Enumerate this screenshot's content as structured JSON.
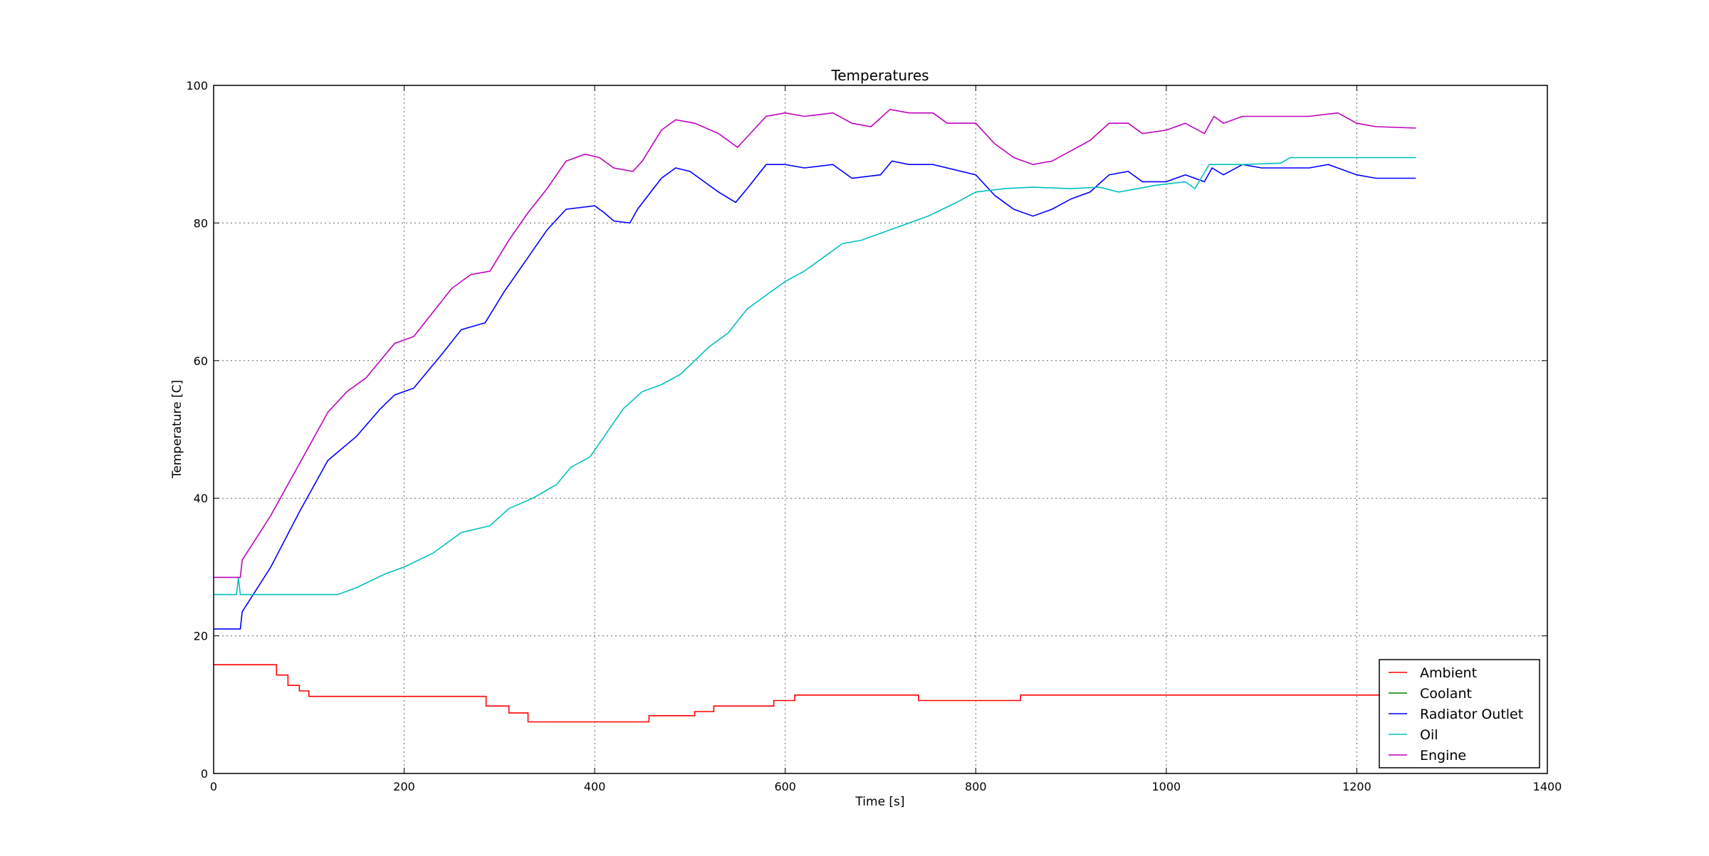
{
  "chart_data": {
    "type": "line",
    "title": "Temperatures",
    "xlabel": "Time [s]",
    "ylabel": "Temperature [C]",
    "xlim": [
      0,
      1400
    ],
    "ylim": [
      0,
      100
    ],
    "xticks": [
      0,
      200,
      400,
      600,
      800,
      1000,
      1200,
      1400
    ],
    "yticks": [
      0,
      20,
      40,
      60,
      80,
      100
    ],
    "grid": true,
    "legend_position": "lower-right",
    "series": [
      {
        "name": "Ambient",
        "color": "#ff0000",
        "step": true,
        "points": [
          [
            0,
            15.8
          ],
          [
            62,
            15.8
          ],
          [
            66,
            14.3
          ],
          [
            78,
            12.8
          ],
          [
            90,
            12.0
          ],
          [
            100,
            11.2
          ],
          [
            280,
            11.2
          ],
          [
            286,
            9.8
          ],
          [
            310,
            8.8
          ],
          [
            330,
            7.5
          ],
          [
            455,
            7.5
          ],
          [
            457,
            8.4
          ],
          [
            505,
            9.0
          ],
          [
            525,
            9.8
          ],
          [
            588,
            10.6
          ],
          [
            610,
            11.4
          ],
          [
            738,
            11.4
          ],
          [
            740,
            10.6
          ],
          [
            845,
            10.6
          ],
          [
            847,
            11.4
          ],
          [
            1262,
            11.4
          ]
        ]
      },
      {
        "name": "Coolant",
        "color": "#008000",
        "step": true,
        "points": []
      },
      {
        "name": "Radiator Outlet",
        "color": "#0000ff",
        "step": false,
        "points": [
          [
            0,
            21.0
          ],
          [
            28,
            21.0
          ],
          [
            30,
            23.5
          ],
          [
            60,
            30
          ],
          [
            90,
            38
          ],
          [
            120,
            45.5
          ],
          [
            150,
            49
          ],
          [
            175,
            53
          ],
          [
            190,
            55
          ],
          [
            210,
            56
          ],
          [
            240,
            61
          ],
          [
            260,
            64.5
          ],
          [
            285,
            65.5
          ],
          [
            305,
            70
          ],
          [
            330,
            75
          ],
          [
            350,
            79
          ],
          [
            370,
            82
          ],
          [
            400,
            82.5
          ],
          [
            410,
            81.5
          ],
          [
            420,
            80.3
          ],
          [
            437,
            80
          ],
          [
            445,
            82
          ],
          [
            470,
            86.5
          ],
          [
            485,
            88
          ],
          [
            500,
            87.5
          ],
          [
            515,
            86
          ],
          [
            530,
            84.5
          ],
          [
            548,
            83
          ],
          [
            560,
            85
          ],
          [
            580,
            88.5
          ],
          [
            600,
            88.5
          ],
          [
            620,
            88
          ],
          [
            650,
            88.5
          ],
          [
            670,
            86.5
          ],
          [
            700,
            87
          ],
          [
            712,
            89
          ],
          [
            730,
            88.5
          ],
          [
            755,
            88.5
          ],
          [
            800,
            87
          ],
          [
            820,
            84
          ],
          [
            840,
            82
          ],
          [
            860,
            81
          ],
          [
            880,
            82
          ],
          [
            900,
            83.5
          ],
          [
            920,
            84.5
          ],
          [
            940,
            87
          ],
          [
            960,
            87.5
          ],
          [
            975,
            86
          ],
          [
            1000,
            86
          ],
          [
            1020,
            87
          ],
          [
            1040,
            86
          ],
          [
            1048,
            88
          ],
          [
            1060,
            87
          ],
          [
            1080,
            88.5
          ],
          [
            1100,
            88
          ],
          [
            1150,
            88
          ],
          [
            1170,
            88.5
          ],
          [
            1200,
            87
          ],
          [
            1220,
            86.5
          ],
          [
            1262,
            86.5
          ]
        ]
      },
      {
        "name": "Oil",
        "color": "#00bfbf",
        "step": false,
        "points": [
          [
            0,
            26.0
          ],
          [
            24,
            26.0
          ],
          [
            26,
            28.5
          ],
          [
            28,
            26.0
          ],
          [
            130,
            26.0
          ],
          [
            150,
            27
          ],
          [
            180,
            29
          ],
          [
            200,
            30
          ],
          [
            230,
            32
          ],
          [
            260,
            35
          ],
          [
            290,
            36
          ],
          [
            310,
            38.5
          ],
          [
            335,
            40
          ],
          [
            360,
            42
          ],
          [
            375,
            44.5
          ],
          [
            395,
            46
          ],
          [
            410,
            49
          ],
          [
            430,
            53
          ],
          [
            450,
            55.5
          ],
          [
            470,
            56.5
          ],
          [
            490,
            58
          ],
          [
            520,
            62
          ],
          [
            540,
            64
          ],
          [
            560,
            67.5
          ],
          [
            580,
            69.5
          ],
          [
            600,
            71.5
          ],
          [
            620,
            73
          ],
          [
            640,
            75
          ],
          [
            660,
            77
          ],
          [
            680,
            77.5
          ],
          [
            700,
            78.5
          ],
          [
            720,
            79.5
          ],
          [
            750,
            81
          ],
          [
            780,
            83
          ],
          [
            800,
            84.5
          ],
          [
            830,
            85
          ],
          [
            860,
            85.2
          ],
          [
            900,
            85
          ],
          [
            930,
            85.2
          ],
          [
            950,
            84.5
          ],
          [
            990,
            85.5
          ],
          [
            1020,
            86
          ],
          [
            1030,
            85
          ],
          [
            1045,
            88.5
          ],
          [
            1060,
            88.5
          ],
          [
            1080,
            88.5
          ],
          [
            1120,
            88.7
          ],
          [
            1130,
            89.5
          ],
          [
            1262,
            89.5
          ]
        ]
      },
      {
        "name": "Engine",
        "color": "#bf00bf",
        "step": false,
        "points": [
          [
            0,
            28.5
          ],
          [
            28,
            28.5
          ],
          [
            30,
            31
          ],
          [
            60,
            37.5
          ],
          [
            80,
            42.5
          ],
          [
            100,
            47.5
          ],
          [
            120,
            52.5
          ],
          [
            140,
            55.5
          ],
          [
            160,
            57.5
          ],
          [
            175,
            60
          ],
          [
            190,
            62.5
          ],
          [
            210,
            63.5
          ],
          [
            230,
            67
          ],
          [
            250,
            70.5
          ],
          [
            270,
            72.5
          ],
          [
            290,
            73
          ],
          [
            310,
            77.5
          ],
          [
            330,
            81.5
          ],
          [
            350,
            85
          ],
          [
            370,
            89
          ],
          [
            390,
            90
          ],
          [
            405,
            89.5
          ],
          [
            420,
            88
          ],
          [
            440,
            87.5
          ],
          [
            450,
            89
          ],
          [
            470,
            93.5
          ],
          [
            485,
            95
          ],
          [
            505,
            94.5
          ],
          [
            530,
            93
          ],
          [
            550,
            91
          ],
          [
            560,
            92.5
          ],
          [
            580,
            95.5
          ],
          [
            600,
            96
          ],
          [
            620,
            95.5
          ],
          [
            650,
            96
          ],
          [
            670,
            94.5
          ],
          [
            690,
            94
          ],
          [
            710,
            96.5
          ],
          [
            730,
            96
          ],
          [
            755,
            96
          ],
          [
            770,
            94.5
          ],
          [
            800,
            94.5
          ],
          [
            820,
            91.5
          ],
          [
            840,
            89.5
          ],
          [
            860,
            88.5
          ],
          [
            880,
            89
          ],
          [
            900,
            90.5
          ],
          [
            920,
            92
          ],
          [
            940,
            94.5
          ],
          [
            960,
            94.5
          ],
          [
            975,
            93
          ],
          [
            1000,
            93.5
          ],
          [
            1020,
            94.5
          ],
          [
            1040,
            93
          ],
          [
            1050,
            95.5
          ],
          [
            1060,
            94.5
          ],
          [
            1080,
            95.5
          ],
          [
            1100,
            95.5
          ],
          [
            1150,
            95.5
          ],
          [
            1180,
            96
          ],
          [
            1200,
            94.5
          ],
          [
            1220,
            94
          ],
          [
            1262,
            93.8
          ]
        ]
      }
    ]
  }
}
